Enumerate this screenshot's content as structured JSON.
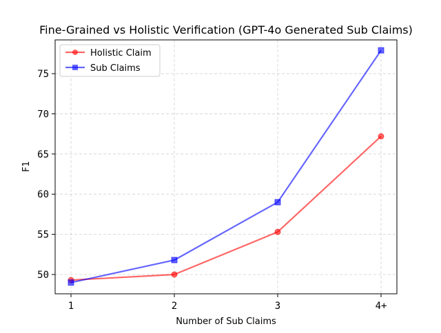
{
  "chart_data": {
    "type": "line",
    "title": "Fine-Grained vs Holistic Verification (GPT-4o Generated Sub Claims)",
    "xlabel": "Number of Sub Claims",
    "ylabel": "F1",
    "categories": [
      "1",
      "2",
      "3",
      "4+"
    ],
    "yticks": [
      50,
      55,
      60,
      65,
      70,
      75
    ],
    "ylim": [
      47.6,
      79.2
    ],
    "grid": true,
    "legend_position": "upper-left",
    "series": [
      {
        "name": "Holistic Claim",
        "values": [
          49.3,
          50.0,
          55.3,
          67.2
        ],
        "color": "#ff0000",
        "marker": "circle"
      },
      {
        "name": "Sub Claims",
        "values": [
          49.0,
          51.8,
          59.0,
          77.9
        ],
        "color": "#0000ff",
        "marker": "square"
      }
    ]
  }
}
